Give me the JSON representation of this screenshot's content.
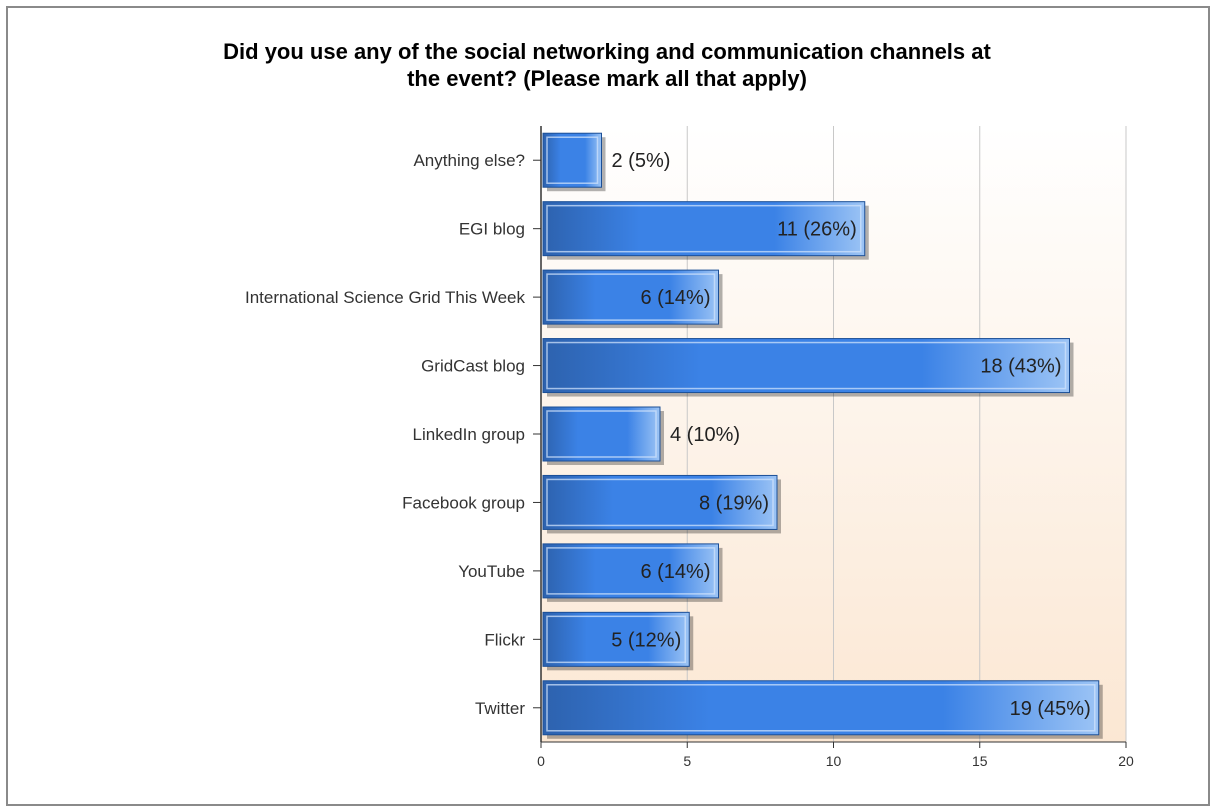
{
  "chart_data": {
    "type": "bar",
    "orientation": "horizontal",
    "title": "Did you use any of the social networking and communication channels at\nthe event? (Please mark all that apply)",
    "xlabel": "",
    "ylabel": "",
    "xlim": [
      0,
      20
    ],
    "x_ticks": [
      "0",
      "5",
      "10",
      "15",
      "20"
    ],
    "grid": true,
    "categories": [
      "Anything else?",
      "EGI blog",
      "International Science Grid This Week",
      "GridCast blog",
      "LinkedIn group",
      "Facebook group",
      "YouTube",
      "Flickr",
      "Twitter"
    ],
    "values": [
      2,
      11,
      6,
      18,
      4,
      8,
      6,
      5,
      19
    ],
    "data_labels": [
      "2 (5%)",
      "11 (26%)",
      "6 (14%)",
      "18 (43%)",
      "4 (10%)",
      "8 (19%)",
      "6 (14%)",
      "5 (12%)",
      "19 (45%)"
    ],
    "colors": {
      "bar_dark": "#2d62ae",
      "bar_mid": "#3b82e6",
      "bar_light": "#9cc4f5",
      "bar_border": "#1c4f96",
      "bg_top": "#ffffff",
      "bg_bottom": "#fbe7d3",
      "grid": "#c8c8c8"
    }
  }
}
